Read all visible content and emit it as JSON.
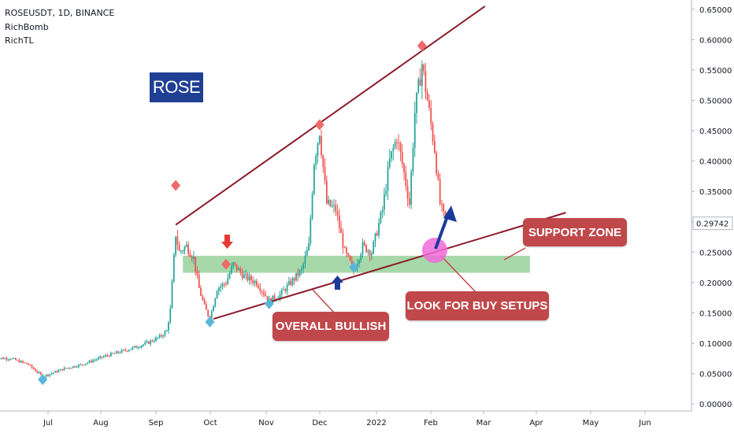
{
  "header": {
    "symbol_line": "ROSEUSDT, 1D, BINANCE",
    "indicators": [
      "RichBomb",
      "RichTL"
    ]
  },
  "badge": {
    "text": "ROSE"
  },
  "annotations": {
    "support_zone": "SUPPORT ZONE",
    "buy_setups": "LOOK FOR BUY SETUPS",
    "overall": "OVERALL BULLISH"
  },
  "colors": {
    "up": "#26a69a",
    "down": "#ef5350",
    "trendline": "#8b1a2b",
    "support_zone": "#81c784",
    "note_bg": "#c0474a",
    "badge_bg": "#1f3f93",
    "arrow_blue": "#1a3a9c",
    "arrow_red": "#e53935",
    "marker_red": "#ef6a6a",
    "marker_blue": "#5ab6d8",
    "circle": "#f06ad8"
  },
  "chart_data": {
    "type": "candlestick",
    "x_tick_labels": [
      "Jul",
      "Aug",
      "Sep",
      "Oct",
      "Nov",
      "Dec",
      "2022",
      "Feb",
      "Mar",
      "Apr",
      "May",
      "Jun"
    ],
    "y_tick_labels": [
      "0.65000",
      "0.60000",
      "0.55000",
      "0.50000",
      "0.45000",
      "0.40000",
      "0.35000",
      "0.30000",
      "0.25000",
      "0.20000",
      "0.15000",
      "0.10000",
      "0.05000",
      "0.00000"
    ],
    "ylim": [
      0,
      0.65
    ],
    "last_price_label": "0.29742",
    "price_path": [
      [
        "2021-06-01",
        0.075
      ],
      [
        "2021-06-10",
        0.075
      ],
      [
        "2021-06-20",
        0.065
      ],
      [
        "2021-06-28",
        0.045
      ],
      [
        "2021-07-10",
        0.058
      ],
      [
        "2021-07-20",
        0.065
      ],
      [
        "2021-08-01",
        0.078
      ],
      [
        "2021-08-15",
        0.09
      ],
      [
        "2021-08-25",
        0.1
      ],
      [
        "2021-09-01",
        0.11
      ],
      [
        "2021-09-05",
        0.12
      ],
      [
        "2021-09-07",
        0.155
      ],
      [
        "2021-09-09",
        0.24
      ],
      [
        "2021-09-10",
        0.28
      ],
      [
        "2021-09-12",
        0.25
      ],
      [
        "2021-09-16",
        0.26
      ],
      [
        "2021-09-20",
        0.24
      ],
      [
        "2021-09-23",
        0.19
      ],
      [
        "2021-09-26",
        0.16
      ],
      [
        "2021-09-29",
        0.14
      ],
      [
        "2021-10-03",
        0.19
      ],
      [
        "2021-10-08",
        0.2
      ],
      [
        "2021-10-12",
        0.23
      ],
      [
        "2021-10-18",
        0.21
      ],
      [
        "2021-10-25",
        0.2
      ],
      [
        "2021-11-01",
        0.17
      ],
      [
        "2021-11-07",
        0.18
      ],
      [
        "2021-11-13",
        0.2
      ],
      [
        "2021-11-19",
        0.22
      ],
      [
        "2021-11-23",
        0.26
      ],
      [
        "2021-11-26",
        0.4
      ],
      [
        "2021-11-29",
        0.45
      ],
      [
        "2021-12-03",
        0.33
      ],
      [
        "2021-12-08",
        0.32
      ],
      [
        "2021-12-13",
        0.25
      ],
      [
        "2021-12-18",
        0.22
      ],
      [
        "2021-12-23",
        0.26
      ],
      [
        "2021-12-28",
        0.25
      ],
      [
        "2022-01-03",
        0.32
      ],
      [
        "2022-01-07",
        0.4
      ],
      [
        "2022-01-11",
        0.44
      ],
      [
        "2022-01-15",
        0.38
      ],
      [
        "2022-01-18",
        0.33
      ],
      [
        "2022-01-21",
        0.48
      ],
      [
        "2022-01-25",
        0.56
      ],
      [
        "2022-01-28",
        0.5
      ],
      [
        "2022-02-01",
        0.42
      ],
      [
        "2022-02-04",
        0.33
      ],
      [
        "2022-02-07",
        0.3
      ]
    ],
    "top_markers": [
      [
        "2021-09-10",
        0.36
      ],
      [
        "2021-11-29",
        0.46
      ],
      [
        "2022-01-25",
        0.59
      ],
      [
        "2021-10-08",
        0.23
      ]
    ],
    "bottom_markers": [
      [
        "2021-06-28",
        0.04
      ],
      [
        "2021-09-29",
        0.135
      ],
      [
        "2021-11-01",
        0.165
      ],
      [
        "2021-12-18",
        0.225
      ]
    ],
    "upper_trendline": [
      [
        "2021-09-10",
        0.295
      ],
      [
        "2022-03-01",
        0.655
      ]
    ],
    "lower_trendline": [
      [
        "2021-10-01",
        0.14
      ],
      [
        "2022-04-15",
        0.315
      ]
    ],
    "support_zone": {
      "from": "2021-09-14",
      "to": "2022-03-26",
      "low": 0.216,
      "high": 0.244
    },
    "grid": false
  }
}
